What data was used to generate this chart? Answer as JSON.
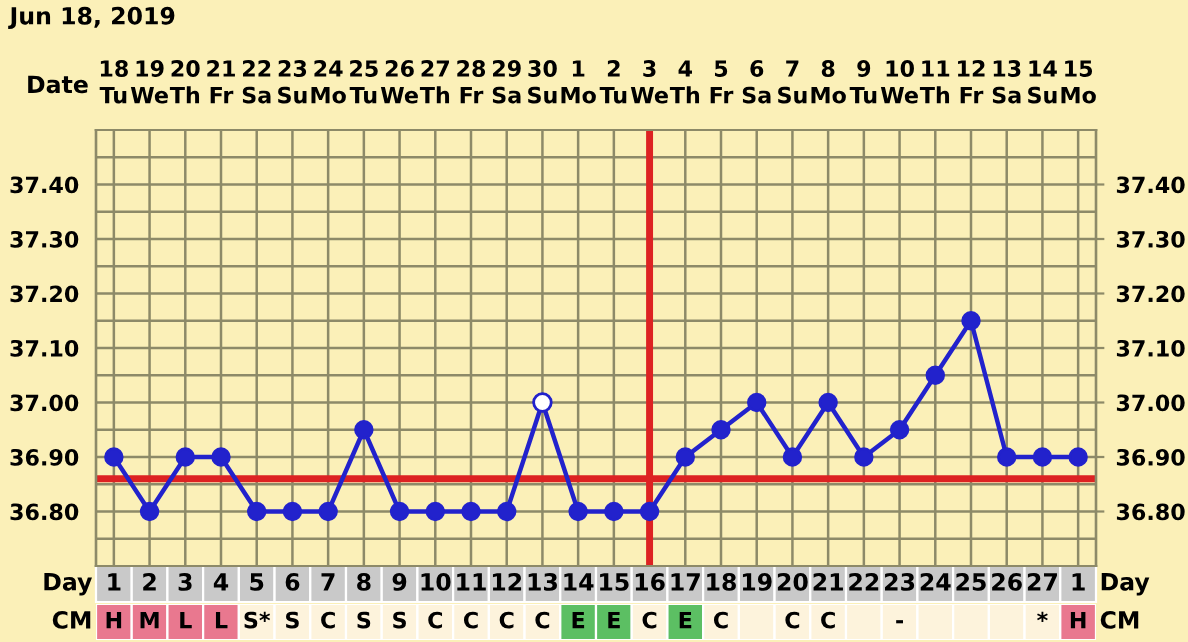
{
  "chart_data": [
    {
      "type": "line",
      "title": "Jun 18, 2019",
      "x2label": "Date",
      "x2lim": [
        "2019-06-17T12:00",
        "2019-07-15T12:00"
      ],
      "x2ticks": [
        {
          "value": "2019-06-18",
          "label": "18\nTu"
        },
        {
          "value": "2019-06-19",
          "label": "19\nWe"
        },
        {
          "value": "2019-06-20",
          "label": "20\nTh"
        },
        {
          "value": "2019-06-21",
          "label": "21\nFr"
        },
        {
          "value": "2019-06-22",
          "label": "22\nSa"
        },
        {
          "value": "2019-06-23",
          "label": "23\nSu"
        },
        {
          "value": "2019-06-24",
          "label": "24\nMo"
        },
        {
          "value": "2019-06-25",
          "label": "25\nTu"
        },
        {
          "value": "2019-06-26",
          "label": "26\nWe"
        },
        {
          "value": "2019-06-27",
          "label": "27\nTh"
        },
        {
          "value": "2019-06-28",
          "label": "28\nFr"
        },
        {
          "value": "2019-06-29",
          "label": "29\nSa"
        },
        {
          "value": "2019-06-30",
          "label": "30\nSu"
        },
        {
          "value": "2019-07-01",
          "label": "1\nMo"
        },
        {
          "value": "2019-07-02",
          "label": "2\nTu"
        },
        {
          "value": "2019-07-03",
          "label": "3\nWe"
        },
        {
          "value": "2019-07-04",
          "label": "4\nTh"
        },
        {
          "value": "2019-07-05",
          "label": "5\nFr"
        },
        {
          "value": "2019-07-06",
          "label": "6\nSa"
        },
        {
          "value": "2019-07-07",
          "label": "7\nSu"
        },
        {
          "value": "2019-07-08",
          "label": "8\nMo"
        },
        {
          "value": "2019-07-09",
          "label": "9\nTu"
        },
        {
          "value": "2019-07-10",
          "label": "10\nWe"
        },
        {
          "value": "2019-07-11",
          "label": "11\nTh"
        },
        {
          "value": "2019-07-12",
          "label": "12\nFr"
        },
        {
          "value": "2019-07-13",
          "label": "13\nSa"
        },
        {
          "value": "2019-07-14",
          "label": "14\nSu"
        },
        {
          "value": "2019-07-15",
          "label": "15\nMo"
        }
      ],
      "xlabel": "Day",
      "categories": [
        "1",
        "2",
        "3",
        "4",
        "5",
        "6",
        "7",
        "8",
        "9",
        "10",
        "11",
        "12",
        "13",
        "14",
        "15",
        "16",
        "17",
        "18",
        "19",
        "20",
        "21",
        "22",
        "23",
        "24",
        "25",
        "26",
        "27",
        "1"
      ],
      "series": [
        {
          "type": "line",
          "color": "#2222cc",
          "marker": "circle",
          "values": [
            36.9,
            36.8,
            36.9,
            36.9,
            36.8,
            36.8,
            36.8,
            36.95,
            36.8,
            36.8,
            36.8,
            36.8,
            37.0,
            36.8,
            36.8,
            36.8,
            36.9,
            36.95,
            37.0,
            36.9,
            37.0,
            36.9,
            36.95,
            37.05,
            37.15,
            36.9,
            36.9,
            36.9
          ]
        },
        {
          "type": "scatter",
          "color": "#ffffff",
          "marker": "circle",
          "values": [
            null,
            null,
            null,
            null,
            null,
            null,
            null,
            null,
            null,
            null,
            null,
            null,
            37.0,
            null,
            null,
            null,
            null,
            null,
            null,
            null,
            null,
            null,
            null,
            null,
            null,
            null,
            null,
            null
          ]
        }
      ],
      "ylim": [
        36.7,
        37.5
      ],
      "yticks": [
        {
          "value": 36.75,
          "label": null
        },
        {
          "value": 36.8,
          "label": "36.80"
        },
        {
          "value": 36.85,
          "label": null
        },
        {
          "value": 36.9,
          "label": "36.90"
        },
        {
          "value": 36.95,
          "label": null
        },
        {
          "value": 37.0,
          "label": "37.00"
        },
        {
          "value": 37.05,
          "label": null
        },
        {
          "value": 37.1,
          "label": "37.10"
        },
        {
          "value": 37.15,
          "label": null
        },
        {
          "value": 37.2,
          "label": "37.20"
        },
        {
          "value": 37.25,
          "label": null
        },
        {
          "value": 37.3,
          "label": "37.30"
        },
        {
          "value": 37.35,
          "label": null
        },
        {
          "value": 37.4,
          "label": "37.40"
        },
        {
          "value": 37.45,
          "label": null
        }
      ],
      "y2lim": [
        36.7,
        37.5
      ],
      "y2ticks": [
        {
          "value": 36.8,
          "label": "36.80"
        },
        {
          "value": 36.9,
          "label": "36.90"
        },
        {
          "value": 37.0,
          "label": "37.00"
        },
        {
          "value": 37.1,
          "label": "37.10"
        },
        {
          "value": 37.2,
          "label": "37.20"
        },
        {
          "value": 37.3,
          "label": "37.30"
        },
        {
          "value": 37.4,
          "label": "37.40"
        }
      ],
      "ref_lines": [
        {
          "axis": "y",
          "value": 36.86,
          "color": "#dd2222"
        },
        {
          "axis": "x",
          "value": "16",
          "color": "#dd2222"
        }
      ],
      "grid": true
    },
    {
      "type": "other",
      "ylabel": "CM",
      "categories": [
        "H",
        "M",
        "L",
        "L",
        "S*",
        "S",
        "C",
        "S",
        "S",
        "C",
        "C",
        "C",
        "C",
        "E",
        "E",
        "C",
        "E",
        "C",
        null,
        "C",
        "C",
        null,
        "-",
        null,
        null,
        null,
        "*",
        "H"
      ],
      "colors": [
        "#e9788f",
        "#e9788f",
        "#e9788f",
        "#e9788f",
        "#fdf3dc",
        "#fdf3dc",
        "#fdf3dc",
        "#fdf3dc",
        "#fdf3dc",
        "#fdf3dc",
        "#fdf3dc",
        "#fdf3dc",
        "#fdf3dc",
        "#5cbf63",
        "#5cbf63",
        "#fdf3dc",
        "#5cbf63",
        "#fdf3dc",
        "#fdf3dc",
        "#fdf3dc",
        "#fdf3dc",
        "#fdf3dc",
        "#fdf3dc",
        "#fdf3dc",
        "#fdf3dc",
        "#fdf3dc",
        "#fdf3dc",
        "#e9788f"
      ]
    }
  ]
}
